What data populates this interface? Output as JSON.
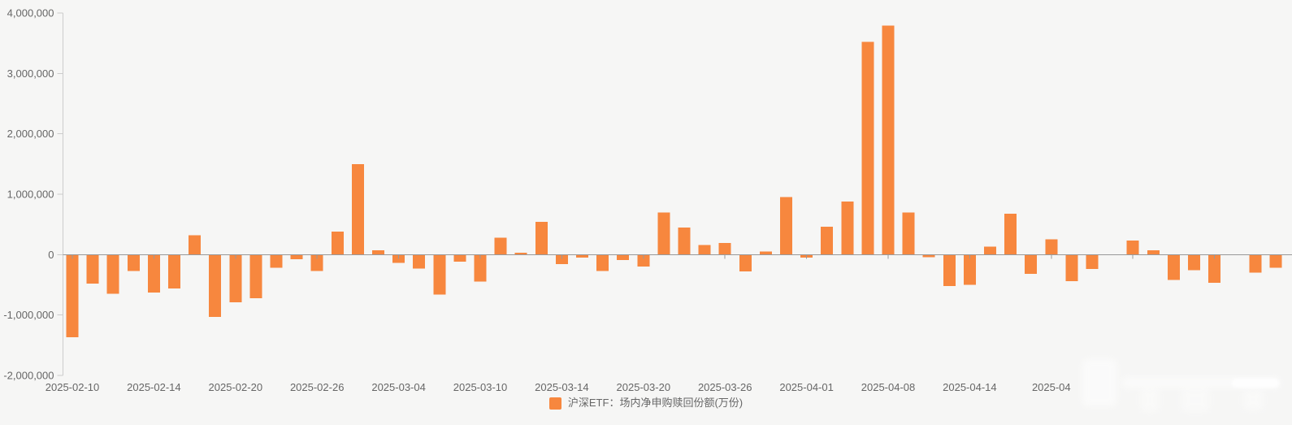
{
  "chart_data": {
    "type": "bar",
    "title": "",
    "series_name": "沪深ETF：场内净申购赎回份额(万份)",
    "x": [
      "2025-02-10",
      "2025-02-11",
      "2025-02-12",
      "2025-02-13",
      "2025-02-14",
      "2025-02-17",
      "2025-02-18",
      "2025-02-19",
      "2025-02-20",
      "2025-02-21",
      "2025-02-24",
      "2025-02-25",
      "2025-02-26",
      "2025-02-27",
      "2025-02-28",
      "2025-03-03",
      "2025-03-04",
      "2025-03-05",
      "2025-03-06",
      "2025-03-07",
      "2025-03-10",
      "2025-03-11",
      "2025-03-12",
      "2025-03-13",
      "2025-03-14",
      "2025-03-17",
      "2025-03-18",
      "2025-03-19",
      "2025-03-20",
      "2025-03-21",
      "2025-03-24",
      "2025-03-25",
      "2025-03-26",
      "2025-03-27",
      "2025-03-28",
      "2025-03-31",
      "2025-04-01",
      "2025-04-02",
      "2025-04-03",
      "2025-04-07",
      "2025-04-08",
      "2025-04-09",
      "2025-04-10",
      "2025-04-11",
      "2025-04-14",
      "2025-04-15",
      "2025-04-16",
      "2025-04-17",
      "2025-04-18",
      "2025-04-21",
      "2025-04-22",
      "2025-04-23",
      "2025-04-24",
      "2025-04-25",
      "2025-04-28",
      "2025-04-29",
      "2025-04-30",
      "2025-05-06",
      "2025-05-07",
      "2025-05-08"
    ],
    "values": [
      -1370000,
      -480000,
      -650000,
      -270000,
      -630000,
      -560000,
      320000,
      -1030000,
      -790000,
      -720000,
      -220000,
      -80000,
      -270000,
      380000,
      1500000,
      70000,
      -140000,
      -230000,
      -660000,
      -120000,
      -450000,
      280000,
      30000,
      540000,
      -160000,
      -50000,
      -270000,
      -90000,
      -200000,
      700000,
      450000,
      160000,
      190000,
      -280000,
      50000,
      950000,
      -50000,
      460000,
      880000,
      3520000,
      3790000,
      700000,
      -40000,
      -520000,
      -500000,
      130000,
      680000,
      -320000,
      250000,
      -440000,
      -240000,
      0,
      230000,
      70000,
      -420000,
      -260000,
      -470000,
      0,
      -300000,
      -220000
    ],
    "x_axis_labels": [
      {
        "index": 0,
        "label": "2025-02-10"
      },
      {
        "index": 4,
        "label": "2025-02-14"
      },
      {
        "index": 8,
        "label": "2025-02-20"
      },
      {
        "index": 12,
        "label": "2025-02-26"
      },
      {
        "index": 16,
        "label": "2025-03-04"
      },
      {
        "index": 20,
        "label": "2025-03-10"
      },
      {
        "index": 24,
        "label": "2025-03-14"
      },
      {
        "index": 28,
        "label": "2025-03-20"
      },
      {
        "index": 32,
        "label": "2025-03-26"
      },
      {
        "index": 36,
        "label": "2025-04-01"
      },
      {
        "index": 40,
        "label": "2025-04-08"
      },
      {
        "index": 44,
        "label": "2025-04-14"
      },
      {
        "index": 48,
        "label": "2025-04"
      }
    ],
    "y_ticks": [
      {
        "value": 4000000,
        "label": "4,000,000"
      },
      {
        "value": 3000000,
        "label": "3,000,000"
      },
      {
        "value": 2000000,
        "label": "2,000,000"
      },
      {
        "value": 1000000,
        "label": "1,000,000"
      },
      {
        "value": 0,
        "label": "0"
      },
      {
        "value": -1000000,
        "label": "-1,000,000"
      },
      {
        "value": -2000000,
        "label": "-2,000,000"
      }
    ],
    "ylim": [
      -2000000,
      4000000
    ],
    "xlabel": "",
    "ylabel": "",
    "grid": "off",
    "legend_position": "bottom-center",
    "bar_color": "#f7873e",
    "axis_line_color": "#999999",
    "value_axis_line_color": "#cccccc",
    "label_color": "#666666",
    "background_color": "#f6f6f5"
  },
  "legend": {
    "label": "沪深ETF：场内净申购赎回份额(万份)"
  }
}
